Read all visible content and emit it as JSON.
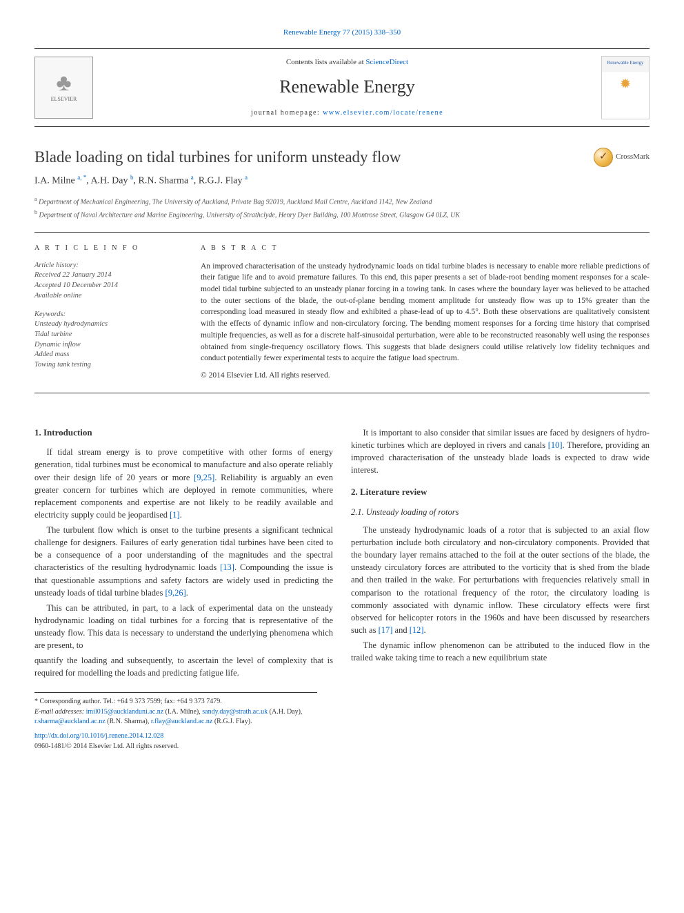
{
  "citation": {
    "prefix": "Renewable Energy 77 (2015) 338",
    "dash": "–",
    "suffix": "350"
  },
  "header": {
    "contents_prefix": "Contents lists available at ",
    "contents_link": "ScienceDirect",
    "journal": "Renewable Energy",
    "homepage_label": "journal homepage: ",
    "homepage_url": "www.elsevier.com/locate/renene",
    "elsevier_text": "ELSEVIER",
    "cover_title": "Renewable Energy"
  },
  "crossmark": "CrossMark",
  "title": "Blade loading on tidal turbines for uniform unsteady flow",
  "authors_html": "I.A. Milne <sup>a, *</sup>, A.H. Day <sup>b</sup>, R.N. Sharma <sup>a</sup>, R.G.J. Flay <sup>a</sup>",
  "affiliations": {
    "a": "Department of Mechanical Engineering, The University of Auckland, Private Bag 92019, Auckland Mail Centre, Auckland 1142, New Zealand",
    "b": "Department of Naval Architecture and Marine Engineering, University of Strathclyde, Henry Dyer Building, 100 Montrose Street, Glasgow G4 0LZ, UK"
  },
  "article_info": {
    "heading": "A R T I C L E   I N F O",
    "history_label": "Article history:",
    "received": "Received 22 January 2014",
    "accepted": "Accepted 10 December 2014",
    "online": "Available online",
    "keywords_label": "Keywords:",
    "keywords": [
      "Unsteady hydrodynamics",
      "Tidal turbine",
      "Dynamic inflow",
      "Added mass",
      "Towing tank testing"
    ]
  },
  "abstract": {
    "heading": "A B S T R A C T",
    "text": "An improved characterisation of the unsteady hydrodynamic loads on tidal turbine blades is necessary to enable more reliable predictions of their fatigue life and to avoid premature failures. To this end, this paper presents a set of blade-root bending moment responses for a scale-model tidal turbine subjected to an unsteady planar forcing in a towing tank. In cases where the boundary layer was believed to be attached to the outer sections of the blade, the out-of-plane bending moment amplitude for unsteady flow was up to 15% greater than the corresponding load measured in steady flow and exhibited a phase-lead of up to 4.5°. Both these observations are qualitatively consistent with the effects of dynamic inflow and non-circulatory forcing. The bending moment responses for a forcing time history that comprised multiple frequencies, as well as for a discrete half-sinusoidal perturbation, were able to be reconstructed reasonably well using the responses obtained from single-frequency oscillatory flows. This suggests that blade designers could utilise relatively low fidelity techniques and conduct potentially fewer experimental tests to acquire the fatigue load spectrum.",
    "copyright": "© 2014 Elsevier Ltd. All rights reserved."
  },
  "sections": {
    "s1_title": "1. Introduction",
    "s1_p1_a": "If tidal stream energy is to prove competitive with other forms of energy generation, tidal turbines must be economical to manufacture and also operate reliably over their design life of 20 years or more ",
    "s1_p1_ref1": "[9,25]",
    "s1_p1_b": ". Reliability is arguably an even greater concern for turbines which are deployed in remote communities, where replacement components and expertise are not likely to be readily available and electricity supply could be jeopardised ",
    "s1_p1_ref2": "[1]",
    "s1_p1_c": ".",
    "s1_p2_a": "The turbulent flow which is onset to the turbine presents a significant technical challenge for designers. Failures of early generation tidal turbines have been cited to be a consequence of a poor understanding of the magnitudes and the spectral characteristics of the resulting hydrodynamic loads ",
    "s1_p2_ref1": "[13]",
    "s1_p2_b": ". Compounding the issue is that questionable assumptions and safety factors are widely used in predicting the unsteady loads of tidal turbine blades ",
    "s1_p2_ref2": "[9,26]",
    "s1_p2_c": ".",
    "s1_p3": "This can be attributed, in part, to a lack of experimental data on the unsteady hydrodynamic loading on tidal turbines for a forcing that is representative of the unsteady flow. This data is necessary to understand the underlying phenomena which are present, to",
    "s1_p4": "quantify the loading and subsequently, to ascertain the level of complexity that is required for modelling the loads and predicting fatigue life.",
    "s1_p5_a": "It is important to also consider that similar issues are faced by designers of hydro-kinetic turbines which are deployed in rivers and canals ",
    "s1_p5_ref": "[10]",
    "s1_p5_b": ". Therefore, providing an improved characterisation of the unsteady blade loads is expected to draw wide interest.",
    "s2_title": "2. Literature review",
    "s21_title": "2.1. Unsteady loading of rotors",
    "s21_p1_a": "The unsteady hydrodynamic loads of a rotor that is subjected to an axial flow perturbation include both circulatory and non-circulatory components. Provided that the boundary layer remains attached to the foil at the outer sections of the blade, the unsteady circulatory forces are attributed to the vorticity that is shed from the blade and then trailed in the wake. For perturbations with frequencies relatively small in comparison to the rotational frequency of the rotor, the circulatory loading is commonly associated with dynamic inflow. These circulatory effects were first observed for helicopter rotors in the 1960s and have been discussed by researchers such as ",
    "s21_p1_ref1": "[17]",
    "s21_p1_mid": " and ",
    "s21_p1_ref2": "[12]",
    "s21_p1_b": ".",
    "s21_p2": "The dynamic inflow phenomenon can be attributed to the induced flow in the trailed wake taking time to reach a new equilibrium state"
  },
  "footnotes": {
    "corr_label": "* Corresponding author. Tel.: +64 9 373 7599; fax: +64 9 373 7479.",
    "email_label": "E-mail addresses: ",
    "emails": {
      "milne": "imil015@aucklanduni.ac.nz",
      "milne_name": " (I.A. Milne), ",
      "day": "sandy.day@strath.ac.uk",
      "day_name": " (A.H. Day), ",
      "sharma": "r.sharma@auckland.ac.nz",
      "sharma_name": " (R.N. Sharma), ",
      "flay": "r.flay@auckland.ac.nz",
      "flay_name": " (R.G.J. Flay)."
    },
    "doi": "http://dx.doi.org/10.1016/j.renene.2014.12.028",
    "issn": "0960-1481/© 2014 Elsevier Ltd. All rights reserved."
  },
  "colors": {
    "link": "#0066cc",
    "text": "#333333",
    "rule": "#333333"
  }
}
